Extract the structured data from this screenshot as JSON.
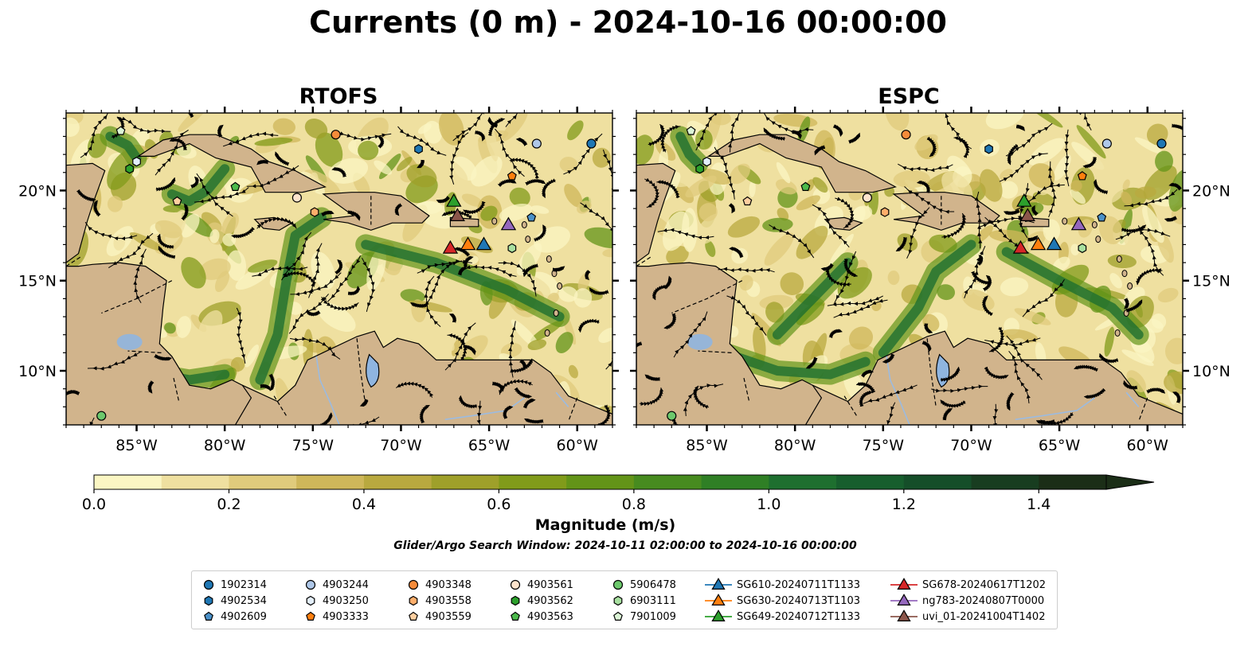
{
  "title": "Currents (0 m) - 2024-10-16 00:00:00",
  "panels": [
    {
      "title": "RTOFS",
      "id": "rtofs"
    },
    {
      "title": "ESPC",
      "id": "espc"
    }
  ],
  "map": {
    "extent": {
      "lon": [
        -89,
        -58
      ],
      "lat": [
        7,
        24.3
      ]
    },
    "lon_ticks": [
      "85°W",
      "80°W",
      "75°W",
      "70°W",
      "65°W",
      "60°W"
    ],
    "lon_values": [
      -85,
      -80,
      -75,
      -70,
      -65,
      -60
    ],
    "lat_ticks": [
      "20°N",
      "15°N",
      "10°N"
    ],
    "lat_values": [
      20,
      15,
      10
    ],
    "colors": {
      "land": "#d1b48c",
      "lake": "#8fb5e0",
      "river": "#9cbbe0",
      "ocean_low": "#f5eeb2"
    }
  },
  "colorbar": {
    "label": "Magnitude (m/s)",
    "tick_labels": [
      "0.0",
      "0.2",
      "0.4",
      "0.6",
      "0.8",
      "1.0",
      "1.2",
      "1.4"
    ],
    "tick_values": [
      0,
      0.2,
      0.4,
      0.6,
      0.8,
      1.0,
      1.2,
      1.4
    ],
    "max": 1.5,
    "extend": "max",
    "colors": [
      "#fbf6c3",
      "#efe0a0",
      "#e0cb7c",
      "#cfb75a",
      "#b9a93f",
      "#9fa02a",
      "#819b1a",
      "#639418",
      "#478b1f",
      "#2f7f25",
      "#1e6f2f",
      "#175e2d",
      "#154e29",
      "#183d20",
      "#1b2e17"
    ]
  },
  "subtitle": "Glider/Argo Search Window: 2024-10-11 02:00:00 to 2024-10-16 00:00:00",
  "legend": [
    {
      "label": "1902314",
      "marker": "circle",
      "color": "#1f77b4"
    },
    {
      "label": "4902534",
      "marker": "hexagon",
      "color": "#1f77b4"
    },
    {
      "label": "4902609",
      "marker": "pentagon",
      "color": "#4a90c8"
    },
    {
      "label": "4903244",
      "marker": "circle",
      "color": "#aec7e8"
    },
    {
      "label": "4903250",
      "marker": "hexagon",
      "color": "#e3eef9"
    },
    {
      "label": "4903333",
      "marker": "pentagon",
      "color": "#ff7f0e"
    },
    {
      "label": "4903348",
      "marker": "circle",
      "color": "#f58b3a"
    },
    {
      "label": "4903558",
      "marker": "hexagon",
      "color": "#ffae6b"
    },
    {
      "label": "4903559",
      "marker": "pentagon",
      "color": "#ffcfa0"
    },
    {
      "label": "4903561",
      "marker": "circle",
      "color": "#fde3cc"
    },
    {
      "label": "4903562",
      "marker": "hexagon",
      "color": "#2ca02c"
    },
    {
      "label": "4903563",
      "marker": "pentagon",
      "color": "#4cba4c"
    },
    {
      "label": "5906478",
      "marker": "circle",
      "color": "#6cc86c"
    },
    {
      "label": "6903111",
      "marker": "hexagon",
      "color": "#a8e0a0"
    },
    {
      "label": "7901009",
      "marker": "pentagon",
      "color": "#dcf5d6"
    },
    {
      "label": "SG610-20240711T1133",
      "marker": "triangle",
      "color": "#1f77b4"
    },
    {
      "label": "SG630-20240713T1103",
      "marker": "triangle",
      "color": "#ff7f0e"
    },
    {
      "label": "SG649-20240712T1133",
      "marker": "triangle",
      "color": "#2ca02c"
    },
    {
      "label": "SG678-20240617T1202",
      "marker": "triangle",
      "color": "#d62728"
    },
    {
      "label": "ng783-20240807T0000",
      "marker": "triangle",
      "color": "#9467bd"
    },
    {
      "label": "uvi_01-20241004T1402",
      "marker": "triangle",
      "color": "#8c564b"
    }
  ],
  "observations": [
    {
      "id": "1902314",
      "lon": -59.2,
      "lat": 22.6
    },
    {
      "id": "4902534",
      "lon": -69.0,
      "lat": 22.3
    },
    {
      "id": "4902609",
      "lon": -62.6,
      "lat": 18.5
    },
    {
      "id": "4903244",
      "lon": -62.3,
      "lat": 22.6
    },
    {
      "id": "4903250",
      "lon": -85.0,
      "lat": 21.6
    },
    {
      "id": "4903333",
      "lon": -63.7,
      "lat": 20.8
    },
    {
      "id": "4903348",
      "lon": -73.7,
      "lat": 23.1
    },
    {
      "id": "4903558",
      "lon": -74.9,
      "lat": 18.8
    },
    {
      "id": "4903559",
      "lon": -82.7,
      "lat": 19.4
    },
    {
      "id": "4903561",
      "lon": -75.9,
      "lat": 19.6
    },
    {
      "id": "4903562",
      "lon": -85.4,
      "lat": 21.2
    },
    {
      "id": "4903563",
      "lon": -79.4,
      "lat": 20.2
    },
    {
      "id": "5906478",
      "lon": -87.0,
      "lat": 7.5
    },
    {
      "id": "6903111",
      "lon": -63.7,
      "lat": 16.8
    },
    {
      "id": "7901009",
      "lon": -85.9,
      "lat": 23.3
    },
    {
      "id": "SG610-20240711T1133",
      "lon": -65.3,
      "lat": 17.0
    },
    {
      "id": "SG630-20240713T1103",
      "lon": -66.2,
      "lat": 17.0
    },
    {
      "id": "SG649-20240712T1133",
      "lon": -67.0,
      "lat": 19.4
    },
    {
      "id": "SG678-20240617T1202",
      "lon": -67.2,
      "lat": 16.8
    },
    {
      "id": "ng783-20240807T0000",
      "lon": -63.9,
      "lat": 18.1
    },
    {
      "id": "uvi_01-20241004T1402",
      "lon": -66.8,
      "lat": 18.6
    }
  ]
}
